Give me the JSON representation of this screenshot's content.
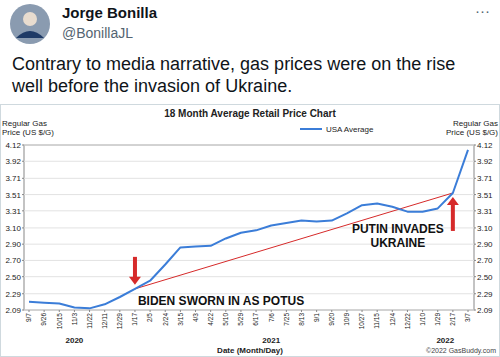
{
  "tweet": {
    "name": "Jorge Bonilla",
    "handle": "@BonillaJL",
    "menu": "···",
    "text": "Contrary to media narrative, gas prices were on the rise well before the invasion of Ukraine."
  },
  "chart_data": {
    "type": "line",
    "title": "18 Month Average Retail Price Chart",
    "y_label": "Regular Gas Price (US $/G)",
    "x_label": "Date (Month/Day)",
    "credit": "©2022 GasBuddy.com",
    "categories": [
      "9/7",
      "9/26",
      "10/15",
      "11/3",
      "11/22",
      "12/11",
      "12/29",
      "1/17",
      "2/5",
      "2/24",
      "3/15",
      "4/3",
      "4/22",
      "5/10",
      "5/29",
      "6/17",
      "7/6",
      "7/25",
      "8/13",
      "9/1",
      "9/20",
      "10/9",
      "10/27",
      "11/15",
      "12/4",
      "12/22",
      "1/10",
      "1/29",
      "2/17",
      "3/7"
    ],
    "x_groups": [
      {
        "label": "2020",
        "from": 0
      },
      {
        "label": "2021",
        "from": 7
      },
      {
        "label": "2022",
        "from": 26
      }
    ],
    "series": [
      {
        "name": "USA Average",
        "color": "#3b7dd8",
        "values": [
          2.19,
          2.18,
          2.17,
          2.12,
          2.11,
          2.16,
          2.25,
          2.35,
          2.45,
          2.65,
          2.86,
          2.87,
          2.88,
          2.97,
          3.04,
          3.07,
          3.13,
          3.16,
          3.19,
          3.18,
          3.19,
          3.28,
          3.38,
          3.4,
          3.36,
          3.3,
          3.3,
          3.34,
          3.53,
          4.06
        ]
      }
    ],
    "annotations": [
      {
        "text": "BIDEN SWORN IN AS POTUS",
        "at": 7
      },
      {
        "text": "PUTIN INVADES UKRAINE",
        "at": 28
      }
    ],
    "ylim": [
      2.09,
      4.12
    ],
    "yticks": [
      2.09,
      2.29,
      {
        "value": 2.5,
        "label": "2.50"
      },
      {
        "value": 2.7,
        "label": "2.70"
      },
      {
        "value": 2.9,
        "label": "2.90"
      },
      {
        "value": 3.1,
        "label": "3.10"
      },
      3.31,
      3.51,
      3.71,
      3.92,
      4.12
    ],
    "grid": true,
    "legend": "top"
  }
}
